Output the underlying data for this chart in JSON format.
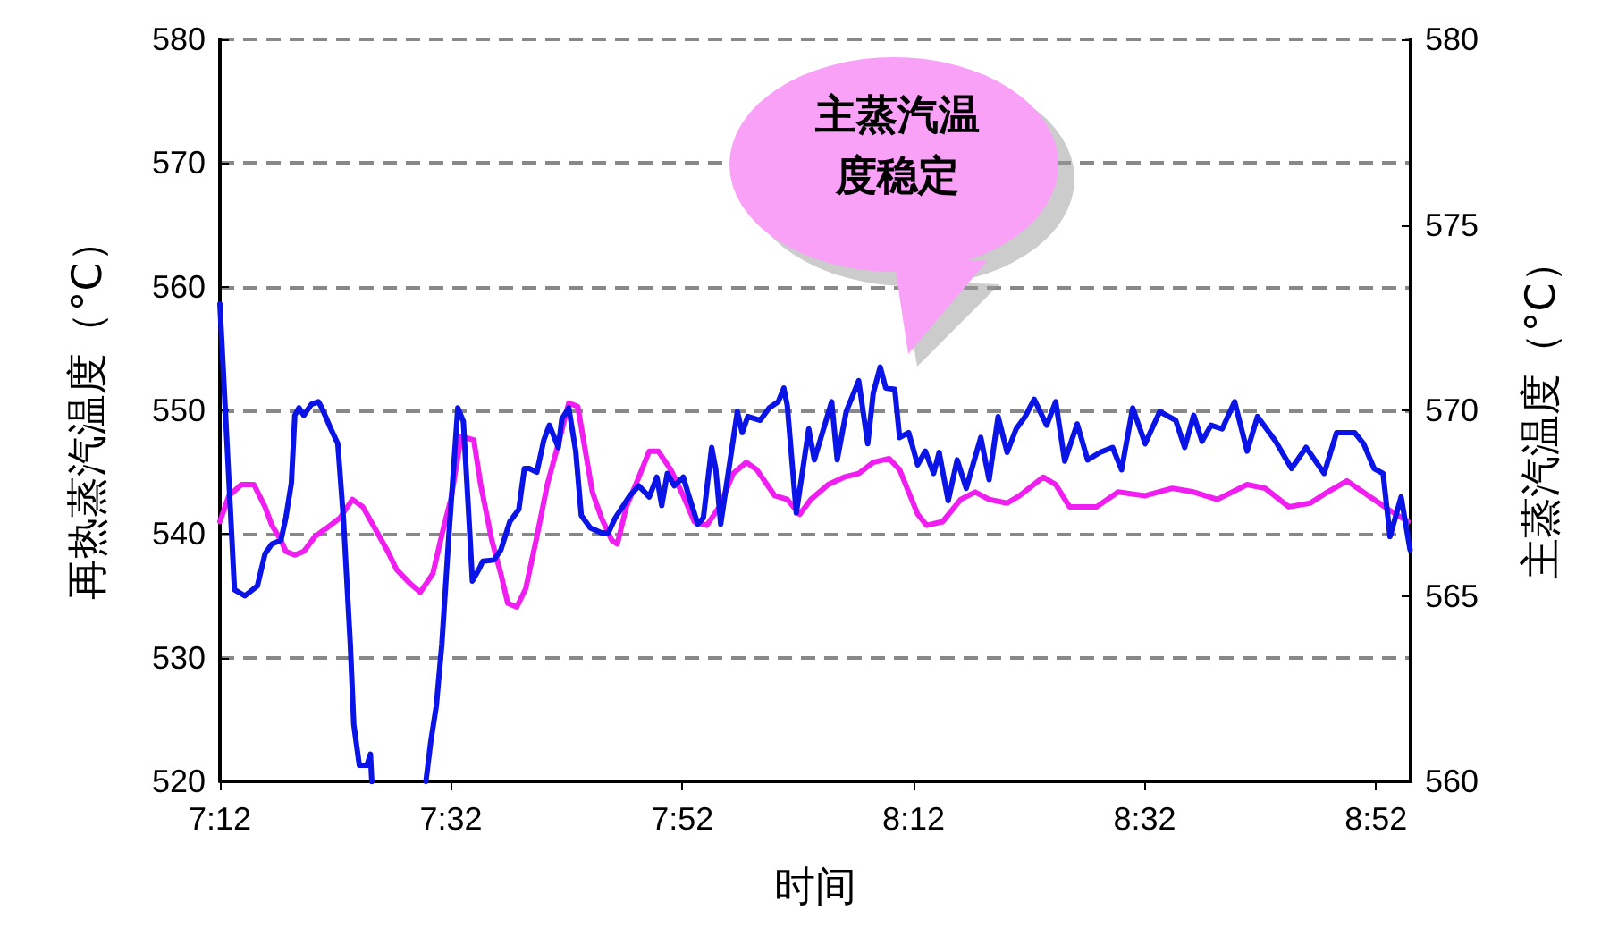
{
  "chart_data": {
    "type": "line",
    "xlabel": "时间",
    "ylabel": "再热蒸汽温度（°C）",
    "y2label": "主蒸汽温度（°C）",
    "annotations": [
      "主蒸汽温度稳定"
    ],
    "xlim": [
      7.2,
      8.9167
    ],
    "xticks": [
      {
        "value": 7.2,
        "label": "7:12"
      },
      {
        "value": 7.5333,
        "label": "7:32"
      },
      {
        "value": 7.8667,
        "label": "7:52"
      },
      {
        "value": 8.2,
        "label": "8:12"
      },
      {
        "value": 8.5333,
        "label": "8:32"
      },
      {
        "value": 8.8667,
        "label": "8:52"
      }
    ],
    "ylim": [
      520,
      580
    ],
    "yticks": [
      520,
      530,
      540,
      550,
      560,
      570,
      580
    ],
    "y2lim": [
      560,
      580
    ],
    "y2ticks": [
      560,
      565,
      570,
      575,
      580
    ],
    "grid": "y",
    "line_style": "solid",
    "marker": "none",
    "series": [
      {
        "color": "#0a14e6",
        "axis": "y",
        "x": [
          7.2,
          7.221,
          7.236,
          7.254,
          7.265,
          7.275,
          7.288,
          7.295,
          7.303,
          7.308,
          7.314,
          7.321,
          7.332,
          7.342,
          7.347,
          7.36,
          7.37,
          7.378,
          7.388,
          7.393,
          7.401,
          7.412,
          7.417,
          7.419,
          7.45,
          7.497,
          7.504,
          7.512,
          7.52,
          7.53,
          7.543,
          7.551,
          7.559,
          7.564,
          7.574,
          7.579,
          7.595,
          7.605,
          7.618,
          7.631,
          7.639,
          7.646,
          7.657,
          7.667,
          7.675,
          7.688,
          7.693,
          7.703,
          7.713,
          7.721,
          7.734,
          7.75,
          7.76,
          7.77,
          7.791,
          7.804,
          7.819,
          7.83,
          7.837,
          7.845,
          7.855,
          7.868,
          7.876,
          7.889,
          7.897,
          7.909,
          7.915,
          7.922,
          7.946,
          7.953,
          7.961,
          7.979,
          7.992,
          8.005,
          8.013,
          8.018,
          8.031,
          8.049,
          8.057,
          8.082,
          8.09,
          8.103,
          8.121,
          8.134,
          8.142,
          8.152,
          8.16,
          8.173,
          8.18,
          8.193,
          8.206,
          8.217,
          8.229,
          8.237,
          8.25,
          8.263,
          8.276,
          8.297,
          8.309,
          8.322,
          8.335,
          8.348,
          8.361,
          8.374,
          8.392,
          8.405,
          8.418,
          8.436,
          8.451,
          8.469,
          8.487,
          8.5,
          8.516,
          8.534,
          8.555,
          8.578,
          8.591,
          8.604,
          8.616,
          8.629,
          8.645,
          8.663,
          8.681,
          8.696,
          8.709,
          8.722,
          8.745,
          8.766,
          8.792,
          8.81,
          8.836,
          8.849,
          8.864,
          8.877,
          8.887,
          8.903,
          8.916
        ],
        "values": [
          558.6,
          535.5,
          535.0,
          535.8,
          538.4,
          539.2,
          539.5,
          541.3,
          544.1,
          549.6,
          550.2,
          549.6,
          550.5,
          550.7,
          550.2,
          548.5,
          547.3,
          541.3,
          531.1,
          524.6,
          521.3,
          521.3,
          522.2,
          520.0,
          null,
          520.0,
          523.2,
          526.1,
          531.1,
          539.8,
          550.2,
          549.1,
          541.3,
          536.2,
          537.2,
          537.8,
          537.9,
          538.7,
          541.0,
          542.0,
          545.3,
          545.3,
          545.0,
          547.6,
          548.8,
          547.0,
          549.3,
          550.2,
          546.7,
          541.5,
          540.5,
          540.1,
          540.1,
          541.3,
          543.1,
          543.9,
          543.0,
          544.6,
          542.3,
          544.9,
          543.9,
          544.6,
          543.1,
          540.8,
          541.3,
          547.0,
          545.2,
          540.8,
          549.9,
          548.2,
          549.5,
          549.2,
          550.2,
          550.7,
          551.8,
          550.4,
          541.7,
          548.5,
          546.0,
          550.7,
          546.0,
          549.9,
          552.4,
          547.3,
          551.4,
          553.5,
          551.8,
          551.7,
          547.8,
          548.2,
          545.6,
          546.7,
          544.9,
          546.6,
          542.7,
          546.0,
          543.7,
          547.8,
          544.4,
          549.5,
          546.6,
          548.5,
          549.5,
          550.9,
          548.8,
          550.7,
          545.9,
          548.9,
          546.0,
          546.6,
          547.0,
          545.2,
          550.2,
          547.3,
          549.9,
          549.2,
          547.0,
          549.6,
          547.5,
          548.8,
          548.5,
          550.7,
          546.7,
          549.5,
          548.5,
          547.5,
          545.3,
          547.0,
          544.9,
          548.2,
          548.2,
          547.3,
          545.3,
          544.9,
          539.8,
          543.0,
          538.7
        ]
      },
      {
        "color": "#f01ef0",
        "axis": "y2",
        "x": [
          7.2,
          7.213,
          7.231,
          7.249,
          7.265,
          7.275,
          7.288,
          7.295,
          7.308,
          7.321,
          7.337,
          7.352,
          7.373,
          7.391,
          7.406,
          7.424,
          7.442,
          7.455,
          7.476,
          7.489,
          7.507,
          7.522,
          7.533,
          7.548,
          7.566,
          7.576,
          7.592,
          7.605,
          7.615,
          7.628,
          7.641,
          7.657,
          7.672,
          7.688,
          7.703,
          7.716,
          7.726,
          7.737,
          7.75,
          7.765,
          7.773,
          7.786,
          7.804,
          7.819,
          7.832,
          7.85,
          7.868,
          7.884,
          7.902,
          7.92,
          7.94,
          7.959,
          7.974,
          8.0,
          8.018,
          8.036,
          8.052,
          8.077,
          8.1,
          8.121,
          8.142,
          8.165,
          8.18,
          8.206,
          8.219,
          8.242,
          8.268,
          8.289,
          8.309,
          8.335,
          8.353,
          8.387,
          8.405,
          8.425,
          8.464,
          8.495,
          8.534,
          8.573,
          8.604,
          8.638,
          8.681,
          8.707,
          8.741,
          8.772,
          8.797,
          8.825,
          8.856,
          8.887,
          8.913
        ],
        "values": [
          567.0,
          567.7,
          568.0,
          568.0,
          567.4,
          566.9,
          566.5,
          566.2,
          566.1,
          566.2,
          566.6,
          566.8,
          567.1,
          567.6,
          567.4,
          566.8,
          566.2,
          565.7,
          565.3,
          565.1,
          565.6,
          566.8,
          567.6,
          569.3,
          569.2,
          568.0,
          566.5,
          565.6,
          564.8,
          564.7,
          565.2,
          566.6,
          568.0,
          569.1,
          570.2,
          570.1,
          569.0,
          567.8,
          567.1,
          566.5,
          566.4,
          567.4,
          568.2,
          568.9,
          568.9,
          568.4,
          567.7,
          567.0,
          566.9,
          567.4,
          568.3,
          568.6,
          568.4,
          567.7,
          567.6,
          567.2,
          567.6,
          568.0,
          568.2,
          568.3,
          568.6,
          568.7,
          568.4,
          567.2,
          566.9,
          567.0,
          567.6,
          567.8,
          567.6,
          567.5,
          567.7,
          568.2,
          568.0,
          567.4,
          567.4,
          567.8,
          567.7,
          567.9,
          567.8,
          567.6,
          568.0,
          567.9,
          567.4,
          567.5,
          567.8,
          568.1,
          567.7,
          567.3,
          567.0
        ]
      }
    ]
  }
}
